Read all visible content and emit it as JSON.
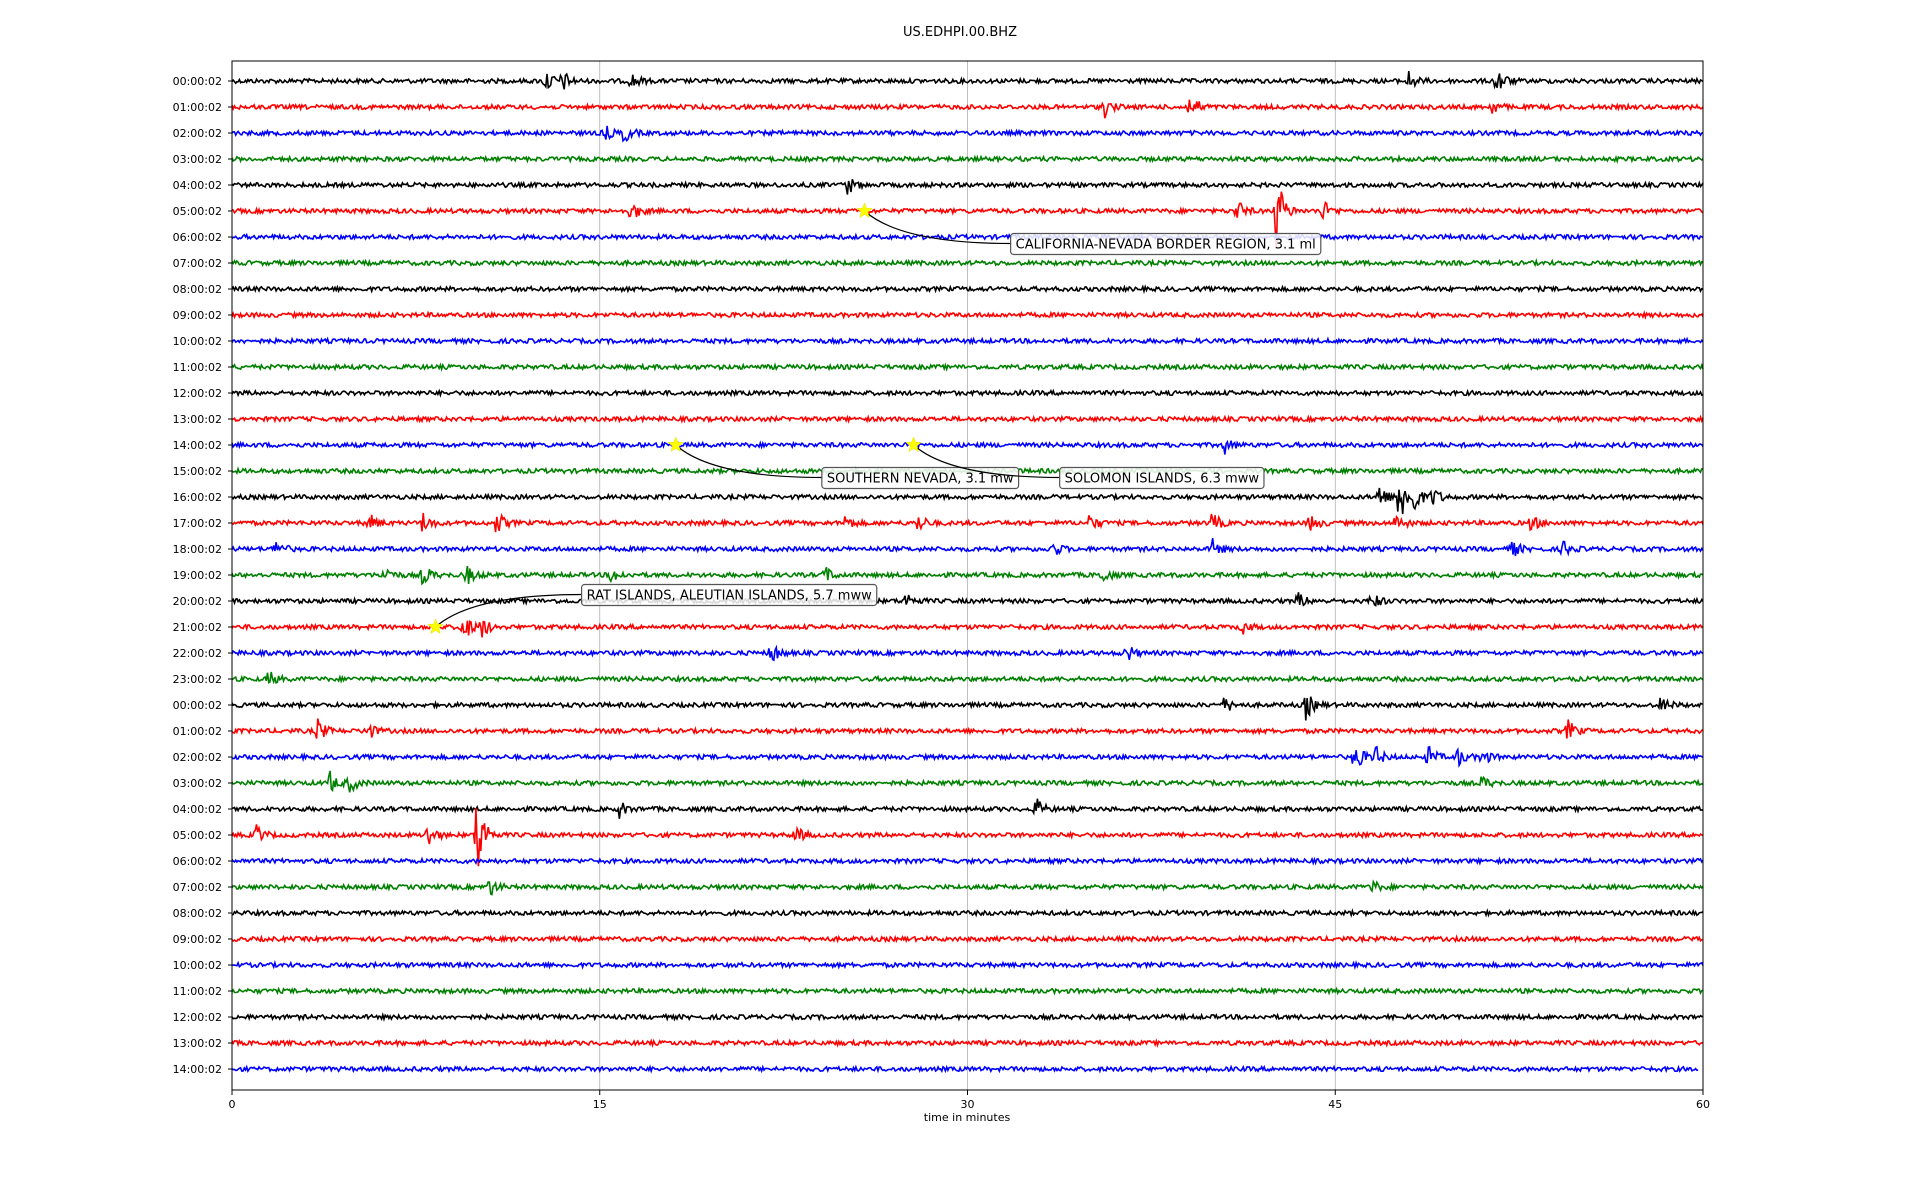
{
  "chart_data": {
    "type": "line",
    "title": "US.EDHPI.00.BHZ",
    "xlabel": "time in minutes",
    "ylabel": "",
    "xlim": [
      0,
      60
    ],
    "xticks": [
      0,
      15,
      30,
      45,
      60
    ],
    "grid": "vertical lines at 15, 30, 45",
    "row_labels": [
      "00:00:02",
      "01:00:02",
      "02:00:02",
      "03:00:02",
      "04:00:02",
      "05:00:02",
      "06:00:02",
      "07:00:02",
      "08:00:02",
      "09:00:02",
      "10:00:02",
      "11:00:02",
      "12:00:02",
      "13:00:02",
      "14:00:02",
      "15:00:02",
      "16:00:02",
      "17:00:02",
      "18:00:02",
      "19:00:02",
      "20:00:02",
      "21:00:02",
      "22:00:02",
      "23:00:02",
      "00:00:02",
      "01:00:02",
      "02:00:02",
      "03:00:02",
      "04:00:02",
      "05:00:02",
      "06:00:02",
      "07:00:02",
      "08:00:02",
      "09:00:02",
      "10:00:02",
      "11:00:02",
      "12:00:02",
      "13:00:02",
      "14:00:02"
    ],
    "trace_colors": [
      "#000000",
      "#ff0000",
      "#0000ff",
      "#008000"
    ],
    "last_row_end_minute": 59.8,
    "bursts": [
      {
        "row": 0,
        "t": 12.8,
        "amp": 0.45
      },
      {
        "row": 0,
        "t": 13.5,
        "amp": 0.35
      },
      {
        "row": 0,
        "t": 16.3,
        "amp": 0.3
      },
      {
        "row": 0,
        "t": 48.0,
        "amp": 0.35
      },
      {
        "row": 0,
        "t": 51.6,
        "amp": 0.55
      },
      {
        "row": 1,
        "t": 35.6,
        "amp": 0.35
      },
      {
        "row": 1,
        "t": 39.1,
        "amp": 0.55
      },
      {
        "row": 1,
        "t": 51.4,
        "amp": 0.25
      },
      {
        "row": 2,
        "t": 15.2,
        "amp": 0.3
      },
      {
        "row": 2,
        "t": 16.0,
        "amp": 0.35
      },
      {
        "row": 4,
        "t": 25.1,
        "amp": 0.35
      },
      {
        "row": 5,
        "t": 16.3,
        "amp": 0.4
      },
      {
        "row": 5,
        "t": 41.0,
        "amp": 0.4
      },
      {
        "row": 5,
        "t": 42.6,
        "amp": 1.5
      },
      {
        "row": 5,
        "t": 44.5,
        "amp": 0.4
      },
      {
        "row": 14,
        "t": 40.5,
        "amp": 0.3
      },
      {
        "row": 16,
        "t": 46.8,
        "amp": 0.5
      },
      {
        "row": 16,
        "t": 47.6,
        "amp": 1.3
      },
      {
        "row": 16,
        "t": 48.2,
        "amp": 0.6
      },
      {
        "row": 16,
        "t": 49.0,
        "amp": 0.35
      },
      {
        "row": 17,
        "t": 5.6,
        "amp": 0.35
      },
      {
        "row": 17,
        "t": 7.8,
        "amp": 0.4
      },
      {
        "row": 17,
        "t": 10.8,
        "amp": 0.45
      },
      {
        "row": 17,
        "t": 25.0,
        "amp": 0.3
      },
      {
        "row": 17,
        "t": 28.0,
        "amp": 0.35
      },
      {
        "row": 17,
        "t": 35.0,
        "amp": 0.35
      },
      {
        "row": 17,
        "t": 40.0,
        "amp": 0.4
      },
      {
        "row": 17,
        "t": 44.0,
        "amp": 0.35
      },
      {
        "row": 17,
        "t": 47.5,
        "amp": 0.35
      },
      {
        "row": 17,
        "t": 53.0,
        "amp": 0.3
      },
      {
        "row": 18,
        "t": 1.8,
        "amp": 0.35
      },
      {
        "row": 18,
        "t": 33.5,
        "amp": 0.3
      },
      {
        "row": 18,
        "t": 40.0,
        "amp": 0.35
      },
      {
        "row": 18,
        "t": 52.2,
        "amp": 0.35
      },
      {
        "row": 18,
        "t": 54.3,
        "amp": 0.3
      },
      {
        "row": 19,
        "t": 6.2,
        "amp": 0.35
      },
      {
        "row": 19,
        "t": 7.8,
        "amp": 0.4
      },
      {
        "row": 19,
        "t": 9.6,
        "amp": 0.35
      },
      {
        "row": 19,
        "t": 15.5,
        "amp": 0.3
      },
      {
        "row": 19,
        "t": 24.2,
        "amp": 0.3
      },
      {
        "row": 19,
        "t": 35.5,
        "amp": 0.3
      },
      {
        "row": 20,
        "t": 27.5,
        "amp": 0.3
      },
      {
        "row": 20,
        "t": 43.5,
        "amp": 0.3
      },
      {
        "row": 20,
        "t": 46.5,
        "amp": 0.35
      },
      {
        "row": 21,
        "t": 9.4,
        "amp": 0.7
      },
      {
        "row": 21,
        "t": 10.2,
        "amp": 0.4
      },
      {
        "row": 21,
        "t": 41.2,
        "amp": 0.25
      },
      {
        "row": 22,
        "t": 22.0,
        "amp": 0.4
      },
      {
        "row": 22,
        "t": 36.5,
        "amp": 0.35
      },
      {
        "row": 23,
        "t": 1.5,
        "amp": 0.3
      },
      {
        "row": 24,
        "t": 40.5,
        "amp": 0.3
      },
      {
        "row": 24,
        "t": 43.8,
        "amp": 0.55
      },
      {
        "row": 24,
        "t": 58.3,
        "amp": 0.3
      },
      {
        "row": 25,
        "t": 3.5,
        "amp": 0.45
      },
      {
        "row": 25,
        "t": 5.5,
        "amp": 0.4
      },
      {
        "row": 25,
        "t": 54.5,
        "amp": 0.4
      },
      {
        "row": 26,
        "t": 45.8,
        "amp": 0.6
      },
      {
        "row": 26,
        "t": 46.6,
        "amp": 0.45
      },
      {
        "row": 26,
        "t": 48.8,
        "amp": 0.4
      },
      {
        "row": 26,
        "t": 50.0,
        "amp": 0.35
      },
      {
        "row": 26,
        "t": 51.0,
        "amp": 0.3
      },
      {
        "row": 27,
        "t": 4.0,
        "amp": 0.4
      },
      {
        "row": 27,
        "t": 4.8,
        "amp": 0.35
      },
      {
        "row": 27,
        "t": 51.0,
        "amp": 0.25
      },
      {
        "row": 28,
        "t": 15.8,
        "amp": 0.3
      },
      {
        "row": 28,
        "t": 32.8,
        "amp": 0.4
      },
      {
        "row": 29,
        "t": 1.0,
        "amp": 0.35
      },
      {
        "row": 29,
        "t": 8.0,
        "amp": 0.45
      },
      {
        "row": 29,
        "t": 10.0,
        "amp": 1.8
      },
      {
        "row": 29,
        "t": 23.0,
        "amp": 0.3
      },
      {
        "row": 31,
        "t": 10.5,
        "amp": 0.35
      },
      {
        "row": 31,
        "t": 46.5,
        "amp": 0.25
      }
    ],
    "events": [
      {
        "label": "CALIFORNIA-NEVADA BORDER REGION, 3.1 ml",
        "row": 5,
        "t": 25.8,
        "box_t": 31.8,
        "box_row": 6.25
      },
      {
        "label": "SOUTHERN NEVADA, 3.1 mw",
        "row": 14,
        "t": 18.1,
        "box_t": 24.1,
        "box_row": 15.25
      },
      {
        "label": "SOLOMON ISLANDS, 6.3 mww",
        "row": 14,
        "t": 27.8,
        "box_t": 33.8,
        "box_row": 15.25
      },
      {
        "label": "RAT ISLANDS, ALEUTIAN ISLANDS, 5.7 mww",
        "row": 21,
        "t": 8.3,
        "box_t": 14.3,
        "box_row": 19.75
      }
    ],
    "marker_color": "#ffff00"
  }
}
